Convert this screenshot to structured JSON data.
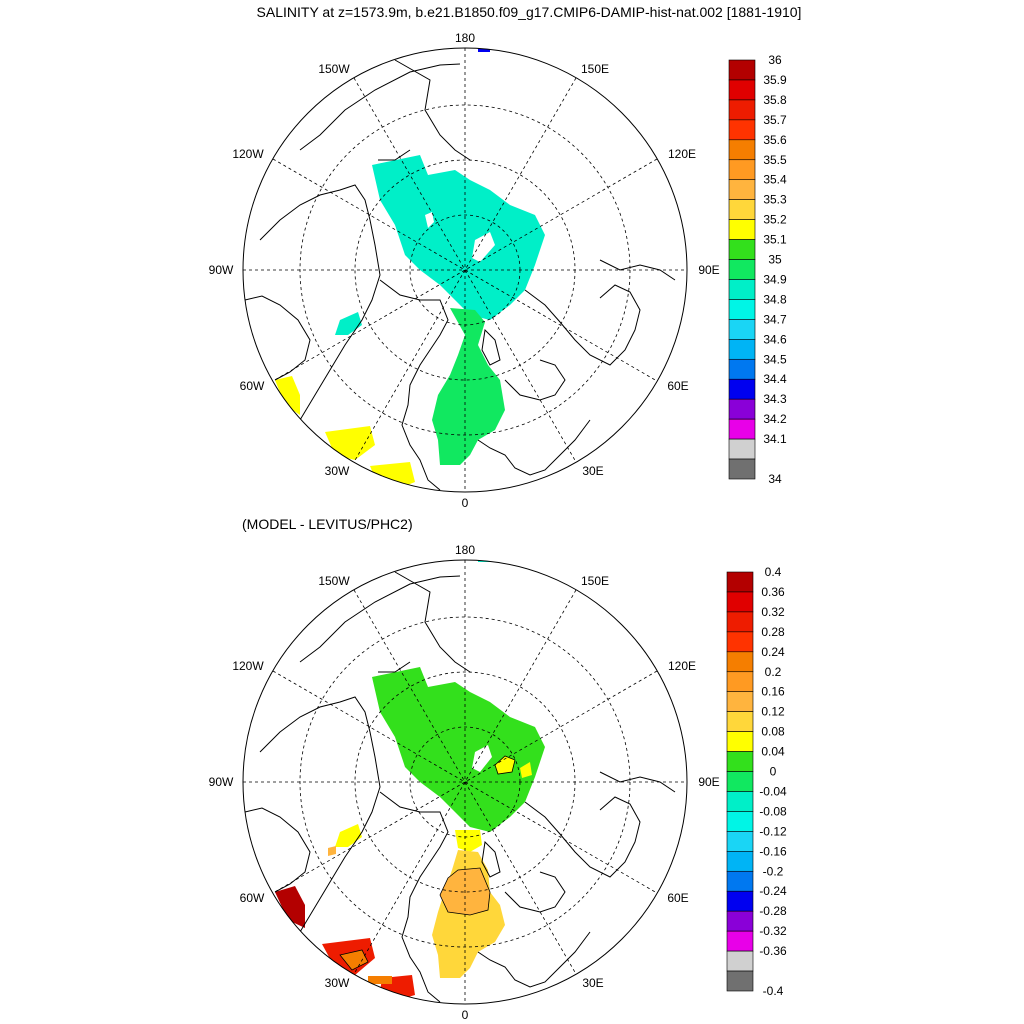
{
  "title": "SALINITY at z=1573.9m, b.e21.B1850.f09_g17.CMIP6-DAMIP-hist-nat.002 [1881-1910]",
  "subtitle": "(MODEL - LEVITUS/PHC2)",
  "longitude_labels": {
    "lon_180": "180",
    "lon_150e": "150E",
    "lon_120e": "120E",
    "lon_90e": "90E",
    "lon_60e": "60E",
    "lon_30e": "30E",
    "lon_0": "0",
    "lon_30w": "30W",
    "lon_60w": "60W",
    "lon_90w": "90W",
    "lon_120w": "120W",
    "lon_150w": "150W"
  },
  "colorbar_top": {
    "labels": [
      "36",
      "35.9",
      "35.8",
      "35.7",
      "35.6",
      "35.5",
      "35.4",
      "35.3",
      "35.2",
      "35.1",
      "35",
      "34.9",
      "34.8",
      "34.7",
      "34.6",
      "34.5",
      "34.4",
      "34.3",
      "34.2",
      "34.1",
      "34"
    ],
    "colors": [
      "#b30000",
      "#e00000",
      "#ee1c00",
      "#ff3300",
      "#f57e00",
      "#ff9a22",
      "#ffb43e",
      "#ffd73a",
      "#ffff00",
      "#33e01c",
      "#11e860",
      "#00efc8",
      "#00f5e6",
      "#1ad5f5",
      "#00b4f5",
      "#0078f0",
      "#0000f0",
      "#8a00d8",
      "#e800e8",
      "#d0d0d0",
      "#707070"
    ]
  },
  "colorbar_bottom": {
    "labels": [
      "0.4",
      "0.36",
      "0.32",
      "0.28",
      "0.24",
      "0.2",
      "0.16",
      "0.12",
      "0.08",
      "0.04",
      "0",
      "-0.04",
      "-0.08",
      "-0.12",
      "-0.16",
      "-0.2",
      "-0.24",
      "-0.28",
      "-0.32",
      "-0.36",
      "-0.4"
    ],
    "colors": [
      "#b30000",
      "#e00000",
      "#ee1c00",
      "#ff3300",
      "#f57e00",
      "#ff9a22",
      "#ffb43e",
      "#ffd73a",
      "#ffff00",
      "#33e01c",
      "#11e860",
      "#00efc8",
      "#00f5e6",
      "#1ad5f5",
      "#00b4f5",
      "#0078f0",
      "#0000f0",
      "#8a00d8",
      "#e800e8",
      "#d0d0d0",
      "#707070"
    ]
  }
}
